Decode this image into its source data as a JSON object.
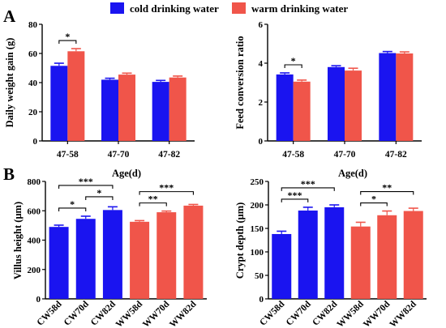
{
  "figure": {
    "panel_labels": [
      "A",
      "B"
    ],
    "legend": [
      {
        "label": "cold drinking water",
        "color": "#1a14f0"
      },
      {
        "label": "warm drinking water",
        "color": "#f0554a"
      }
    ]
  },
  "chart_data": [
    {
      "type": "bar",
      "id": "daily-weight-gain",
      "categories": [
        "47-58",
        "47-70",
        "47-82"
      ],
      "series": [
        {
          "name": "cold drinking water",
          "values": [
            51.5,
            42,
            40.5
          ],
          "errors": [
            1.8,
            1.0,
            1.0
          ],
          "color": "#1a14f0"
        },
        {
          "name": "warm drinking water",
          "values": [
            61.5,
            45.5,
            43.5
          ],
          "errors": [
            1.8,
            1.0,
            1.0
          ],
          "color": "#f0554a"
        }
      ],
      "ylabel": "Daily weight gain (g)",
      "xlabel": "Age(d)",
      "ylim": [
        0,
        80
      ],
      "yticks": [
        0,
        20,
        40,
        60,
        80
      ],
      "significance": [
        {
          "from": 0,
          "to": 1,
          "label": "*"
        }
      ]
    },
    {
      "type": "bar",
      "id": "feed-conversion-ratio",
      "categories": [
        "47-58",
        "47-70",
        "47-82"
      ],
      "series": [
        {
          "name": "cold drinking water",
          "values": [
            3.42,
            3.8,
            4.52
          ],
          "errors": [
            0.08,
            0.07,
            0.08
          ],
          "color": "#1a14f0"
        },
        {
          "name": "warm drinking water",
          "values": [
            3.05,
            3.62,
            4.5
          ],
          "errors": [
            0.08,
            0.12,
            0.08
          ],
          "color": "#f0554a"
        }
      ],
      "ylabel": "Feed conversion ratio",
      "xlabel": "Age(d)",
      "ylim": [
        0,
        6
      ],
      "yticks": [
        0,
        2,
        4,
        6
      ],
      "significance": [
        {
          "from": 0,
          "to": 1,
          "label": "*"
        }
      ]
    },
    {
      "type": "bar",
      "id": "villus-height",
      "categories": [
        "CW58d",
        "CW70d",
        "CW82d",
        "WW58d",
        "WW70d",
        "WW82d"
      ],
      "values": [
        490,
        545,
        605,
        525,
        590,
        635
      ],
      "errors": [
        12,
        18,
        22,
        8,
        8,
        8
      ],
      "colors": [
        "#1a14f0",
        "#1a14f0",
        "#1a14f0",
        "#f0554a",
        "#f0554a",
        "#f0554a"
      ],
      "ylabel": "Villus height (μm)",
      "ylim": [
        0,
        800
      ],
      "yticks": [
        0,
        200,
        400,
        600,
        800
      ],
      "significance": [
        {
          "from": 0,
          "to": 1,
          "label": "*"
        },
        {
          "from": 1,
          "to": 2,
          "label": "*"
        },
        {
          "from": 0,
          "to": 2,
          "label": "***"
        },
        {
          "from": 3,
          "to": 4,
          "label": "**"
        },
        {
          "from": 3,
          "to": 5,
          "label": "***"
        }
      ]
    },
    {
      "type": "bar",
      "id": "crypt-depth",
      "categories": [
        "CW58d",
        "CW70d",
        "CW82d",
        "WW58d",
        "WW70d",
        "WW82d"
      ],
      "values": [
        138,
        188,
        195,
        154,
        178,
        187
      ],
      "errors": [
        6,
        7,
        5,
        9,
        9,
        6
      ],
      "colors": [
        "#1a14f0",
        "#1a14f0",
        "#1a14f0",
        "#f0554a",
        "#f0554a",
        "#f0554a"
      ],
      "ylabel": "Crypt depth (μm)",
      "ylim": [
        0,
        250
      ],
      "yticks": [
        0,
        50,
        100,
        150,
        200,
        250
      ],
      "significance": [
        {
          "from": 0,
          "to": 1,
          "label": "***"
        },
        {
          "from": 0,
          "to": 2,
          "label": "***"
        },
        {
          "from": 3,
          "to": 4,
          "label": "*"
        },
        {
          "from": 3,
          "to": 5,
          "label": "**"
        }
      ]
    }
  ]
}
